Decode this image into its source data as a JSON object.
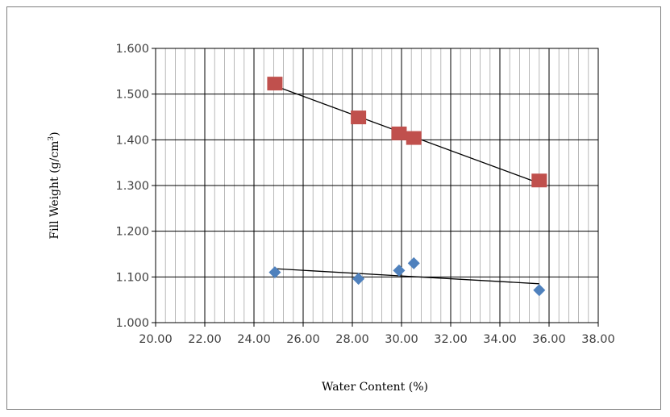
{
  "chart_data": {
    "type": "scatter",
    "title": "",
    "xlabel": "Water Content (%)",
    "ylabel_main": "Fill Weight (g/cm",
    "ylabel_sup": "3",
    "ylabel_end": ")",
    "xlim": [
      20,
      38
    ],
    "ylim": [
      1.0,
      1.6
    ],
    "x_ticks": [
      "20.00",
      "22.00",
      "24.00",
      "26.00",
      "28.00",
      "30.00",
      "32.00",
      "34.00",
      "36.00",
      "38.00"
    ],
    "y_ticks": [
      "1.000",
      "1.100",
      "1.200",
      "1.300",
      "1.400",
      "1.500",
      "1.600"
    ],
    "grid": true,
    "minor_x_step": 0.4,
    "series": [
      {
        "marker": "square",
        "color": "#c0504d",
        "x": [
          24.85,
          28.25,
          29.9,
          30.5,
          35.6
        ],
        "y": [
          1.523,
          1.449,
          1.414,
          1.404,
          1.311
        ],
        "trendline": [
          [
            24.85,
            1.518
          ],
          [
            35.6,
            1.305
          ]
        ]
      },
      {
        "marker": "diamond",
        "color": "#4f81bd",
        "x": [
          24.85,
          28.25,
          29.9,
          30.5,
          35.6
        ],
        "y": [
          1.11,
          1.096,
          1.114,
          1.13,
          1.071
        ],
        "trendline": [
          [
            24.85,
            1.118
          ],
          [
            35.6,
            1.085
          ]
        ]
      }
    ]
  }
}
